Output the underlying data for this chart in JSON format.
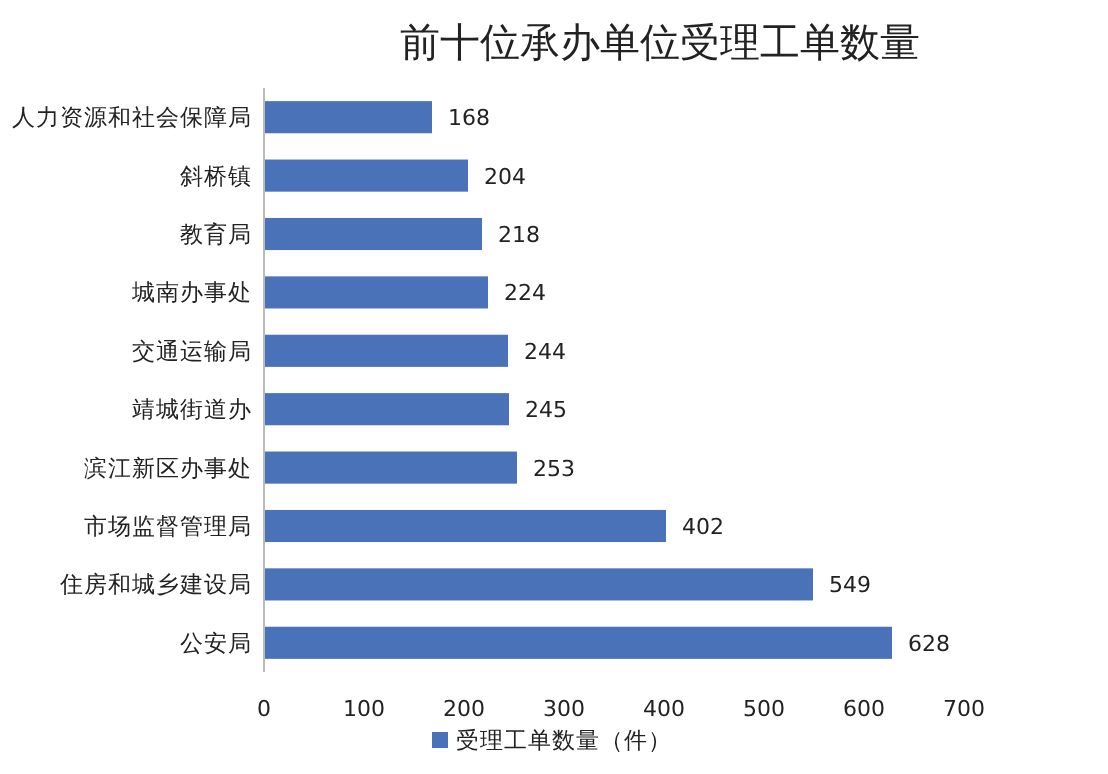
{
  "chart_data": {
    "type": "bar",
    "orientation": "horizontal",
    "title": "前十位承办单位受理工单数量",
    "categories": [
      "人力资源和社会保障局",
      "斜桥镇",
      "教育局",
      "城南办事处",
      "交通运输局",
      "靖城街道办",
      "滨江新区办事处",
      "市场监督管理局",
      "住房和城乡建设局",
      "公安局"
    ],
    "series": [
      {
        "name": "受理工单数量（件）",
        "color": "#4a72b8",
        "values": [
          168,
          204,
          218,
          224,
          244,
          245,
          253,
          402,
          549,
          628
        ]
      }
    ],
    "xlim": [
      0,
      700
    ],
    "xticks": [
      0,
      100,
      200,
      300,
      400,
      500,
      600,
      700
    ],
    "data_labels": true,
    "legend": "bottom"
  }
}
